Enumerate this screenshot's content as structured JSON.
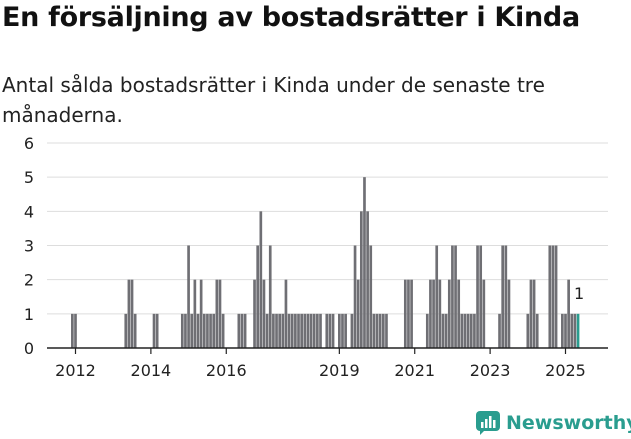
{
  "title": "En försäljning av bostadsrätter i Kinda",
  "subtitle": "Antal sålda bostadsrätter i Kinda under de senaste tre månaderna.",
  "brand": {
    "name": "Newsworthy",
    "color": "#2a9d8f",
    "icon": "newsworthy-logo-icon"
  },
  "colors": {
    "bar": "#6f6f74",
    "highlight": "#2a9d8f",
    "grid": "#dddddd",
    "axis": "#222222"
  },
  "chart_data": {
    "type": "bar",
    "x_unit": "month",
    "ylim": [
      0,
      6
    ],
    "yticks": [
      0,
      1,
      2,
      3,
      4,
      5,
      6
    ],
    "xticks": [
      "2012",
      "2014",
      "2016",
      "2019",
      "2021",
      "2023",
      "2025"
    ],
    "grid": true,
    "series": [
      {
        "values": [
          [
            "2011-12",
            1
          ],
          [
            "2012-01",
            1
          ],
          [
            "2013-05",
            1
          ],
          [
            "2013-06",
            2
          ],
          [
            "2013-07",
            2
          ],
          [
            "2013-08",
            1
          ],
          [
            "2014-02",
            1
          ],
          [
            "2014-03",
            1
          ],
          [
            "2014-11",
            1
          ],
          [
            "2014-12",
            1
          ],
          [
            "2015-01",
            3
          ],
          [
            "2015-02",
            1
          ],
          [
            "2015-03",
            2
          ],
          [
            "2015-04",
            1
          ],
          [
            "2015-05",
            2
          ],
          [
            "2015-06",
            1
          ],
          [
            "2015-07",
            1
          ],
          [
            "2015-08",
            1
          ],
          [
            "2015-09",
            1
          ],
          [
            "2015-10",
            2
          ],
          [
            "2015-11",
            2
          ],
          [
            "2015-12",
            1
          ],
          [
            "2016-05",
            1
          ],
          [
            "2016-06",
            1
          ],
          [
            "2016-07",
            1
          ],
          [
            "2016-10",
            2
          ],
          [
            "2016-11",
            3
          ],
          [
            "2016-12",
            4
          ],
          [
            "2017-01",
            2
          ],
          [
            "2017-02",
            1
          ],
          [
            "2017-03",
            3
          ],
          [
            "2017-04",
            1
          ],
          [
            "2017-05",
            1
          ],
          [
            "2017-06",
            1
          ],
          [
            "2017-07",
            1
          ],
          [
            "2017-08",
            2
          ],
          [
            "2017-09",
            1
          ],
          [
            "2017-10",
            1
          ],
          [
            "2017-11",
            1
          ],
          [
            "2017-12",
            1
          ],
          [
            "2018-01",
            1
          ],
          [
            "2018-02",
            1
          ],
          [
            "2018-03",
            1
          ],
          [
            "2018-04",
            1
          ],
          [
            "2018-05",
            1
          ],
          [
            "2018-06",
            1
          ],
          [
            "2018-07",
            1
          ],
          [
            "2018-09",
            1
          ],
          [
            "2018-10",
            1
          ],
          [
            "2018-11",
            1
          ],
          [
            "2019-01",
            1
          ],
          [
            "2019-02",
            1
          ],
          [
            "2019-03",
            1
          ],
          [
            "2019-05",
            1
          ],
          [
            "2019-06",
            3
          ],
          [
            "2019-07",
            2
          ],
          [
            "2019-08",
            4
          ],
          [
            "2019-09",
            5
          ],
          [
            "2019-10",
            4
          ],
          [
            "2019-11",
            3
          ],
          [
            "2019-12",
            1
          ],
          [
            "2020-01",
            1
          ],
          [
            "2020-02",
            1
          ],
          [
            "2020-03",
            1
          ],
          [
            "2020-04",
            1
          ],
          [
            "2020-10",
            2
          ],
          [
            "2020-11",
            2
          ],
          [
            "2020-12",
            2
          ],
          [
            "2021-05",
            1
          ],
          [
            "2021-06",
            2
          ],
          [
            "2021-07",
            2
          ],
          [
            "2021-08",
            3
          ],
          [
            "2021-09",
            2
          ],
          [
            "2021-10",
            1
          ],
          [
            "2021-11",
            1
          ],
          [
            "2021-12",
            2
          ],
          [
            "2022-01",
            3
          ],
          [
            "2022-02",
            3
          ],
          [
            "2022-03",
            2
          ],
          [
            "2022-04",
            1
          ],
          [
            "2022-05",
            1
          ],
          [
            "2022-06",
            1
          ],
          [
            "2022-07",
            1
          ],
          [
            "2022-08",
            1
          ],
          [
            "2022-09",
            3
          ],
          [
            "2022-10",
            3
          ],
          [
            "2022-11",
            2
          ],
          [
            "2023-04",
            1
          ],
          [
            "2023-05",
            3
          ],
          [
            "2023-06",
            3
          ],
          [
            "2023-07",
            2
          ],
          [
            "2024-01",
            1
          ],
          [
            "2024-02",
            2
          ],
          [
            "2024-03",
            2
          ],
          [
            "2024-04",
            1
          ],
          [
            "2024-08",
            3
          ],
          [
            "2024-09",
            3
          ],
          [
            "2024-10",
            3
          ],
          [
            "2024-12",
            1
          ],
          [
            "2025-01",
            1
          ],
          [
            "2025-02",
            2
          ],
          [
            "2025-03",
            1
          ],
          [
            "2025-04",
            1
          ]
        ]
      }
    ],
    "highlight": {
      "x": "2025-05",
      "value": 1,
      "label": "1"
    }
  }
}
